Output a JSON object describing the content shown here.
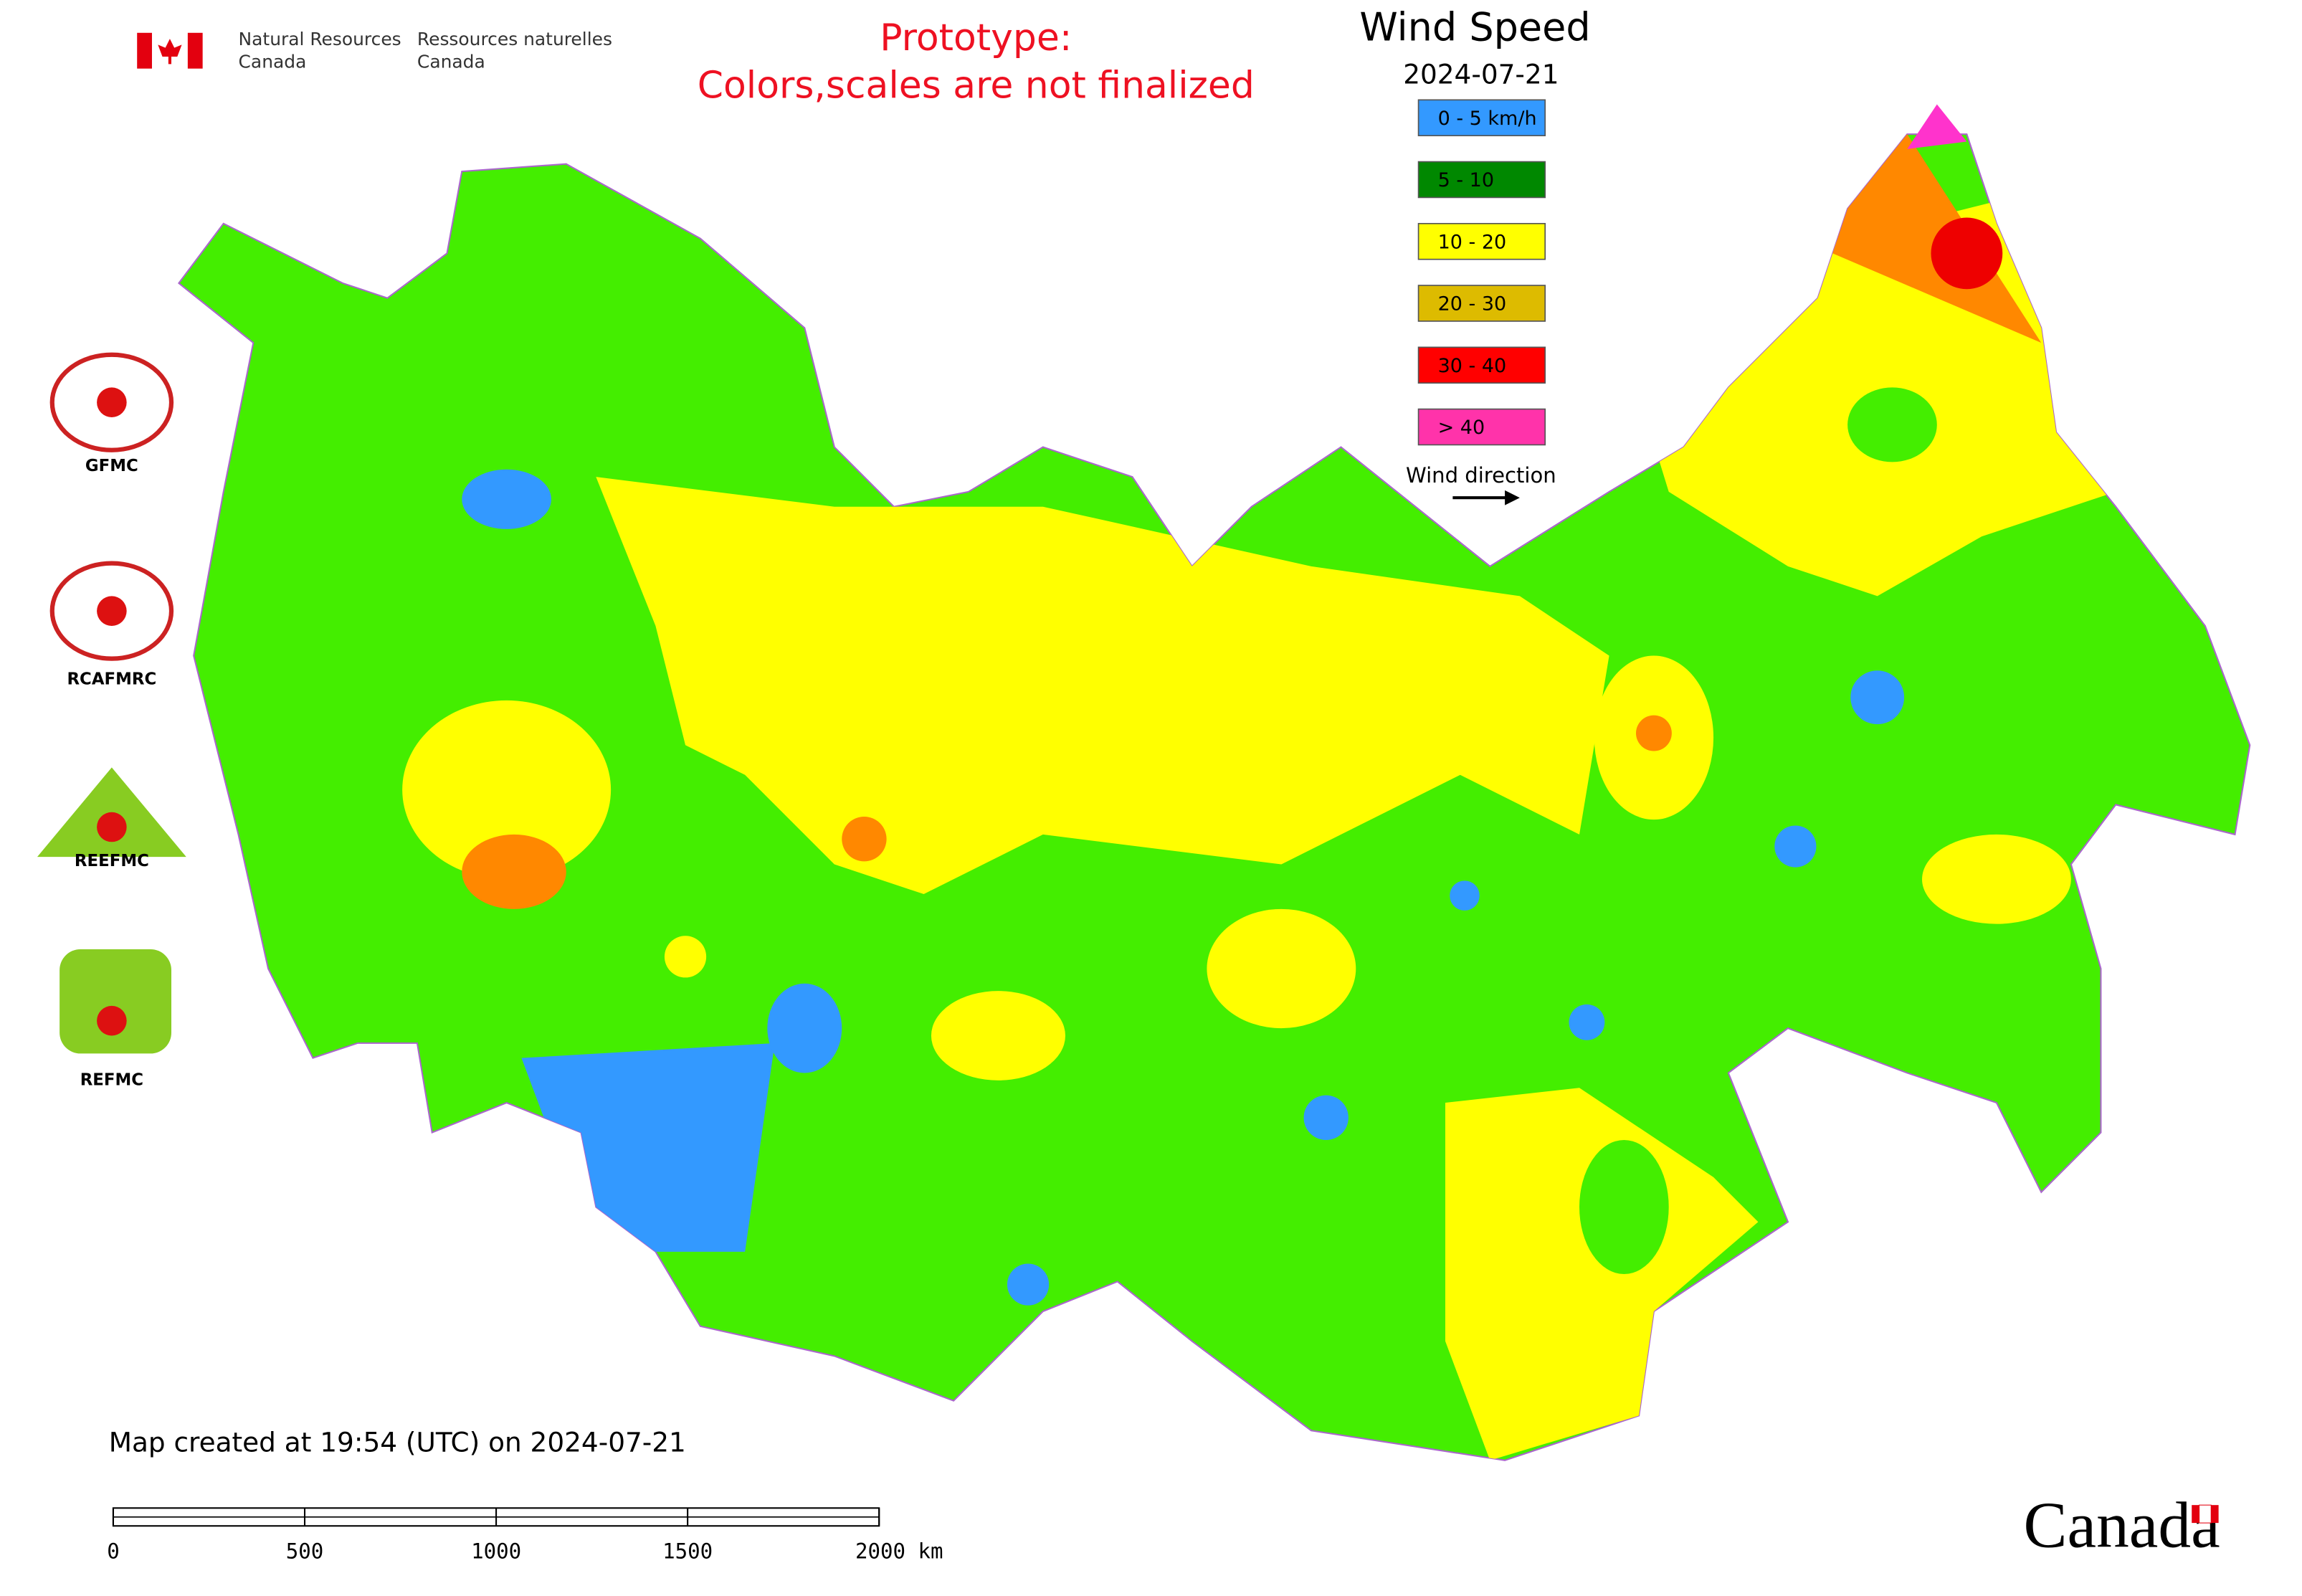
{
  "header": {
    "department_en": [
      "Natural Resources",
      "Canada"
    ],
    "department_fr": [
      "Ressources naturelles",
      "Canada"
    ]
  },
  "notice": [
    "Prototype:",
    "Colors,scales are not finalized"
  ],
  "legend": {
    "title": "Wind Speed",
    "date": "2024-07-21",
    "items": [
      {
        "label": "0 - 5 km/h",
        "color": "#3399ff"
      },
      {
        "label": "5 - 10",
        "color": "#008800"
      },
      {
        "label": "10 - 20",
        "color": "#ffff00"
      },
      {
        "label": "20 - 30",
        "color": "#ddbb00"
      },
      {
        "label": "30 - 40",
        "color": "#ff0000"
      },
      {
        "label": "> 40",
        "color": "#ff33aa"
      }
    ],
    "direction_label": "Wind direction"
  },
  "logos": [
    "GFMC",
    "RCAFMRC",
    "REEFMC",
    "REFMC"
  ],
  "footer": {
    "created": "Map created at 19:54 (UTC) on 2024-07-21",
    "scale_bar": {
      "ticks": [
        0,
        500,
        1000,
        1500,
        {
          "value": 2000,
          "label": "2000 km"
        }
      ]
    },
    "wordmark": "Canada"
  }
}
